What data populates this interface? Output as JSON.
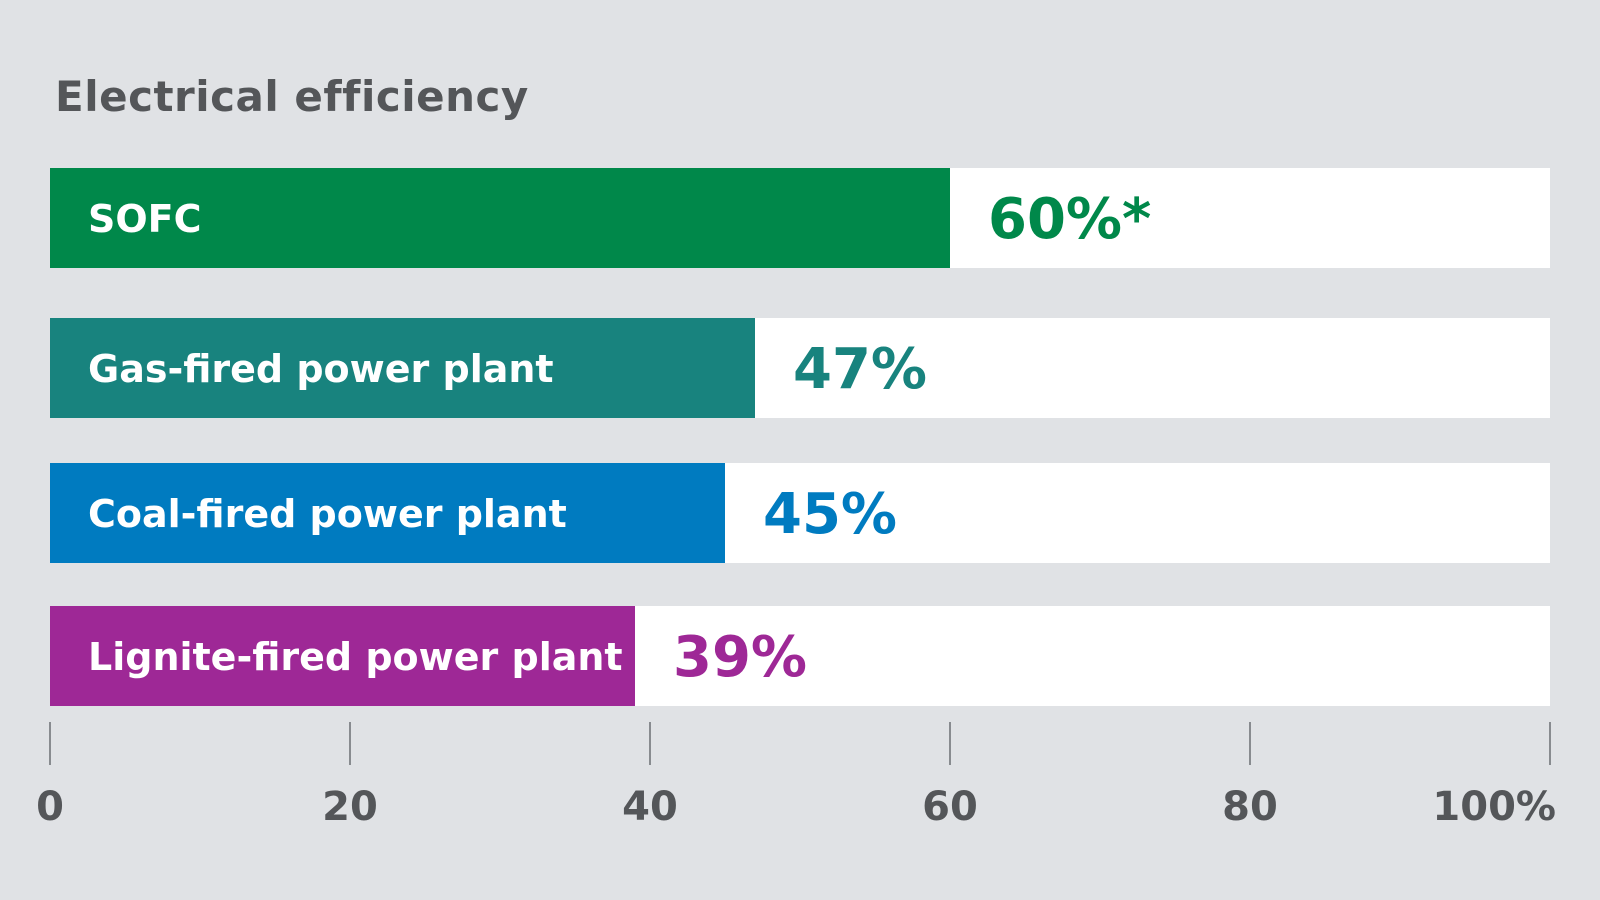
{
  "chart_data": {
    "type": "bar",
    "orientation": "horizontal",
    "title": "Electrical efficiency",
    "categories": [
      "SOFC",
      "Gas-fired power plant",
      "Coal-fired power plant",
      "Lignite-fired power plant"
    ],
    "values": [
      60,
      47,
      45,
      39
    ],
    "value_labels": [
      "60%*",
      "47%",
      "45%",
      "39%"
    ],
    "colors": [
      "#00884a",
      "#18837e",
      "#007bc0",
      "#9e2896"
    ],
    "track_color": "#ffffff",
    "xlim": [
      0,
      100
    ],
    "xticks": [
      0,
      20,
      40,
      60,
      80,
      100
    ],
    "xtick_labels": [
      "0",
      "20",
      "40",
      "60",
      "80",
      "100%"
    ],
    "grid": false,
    "legend": "none"
  }
}
